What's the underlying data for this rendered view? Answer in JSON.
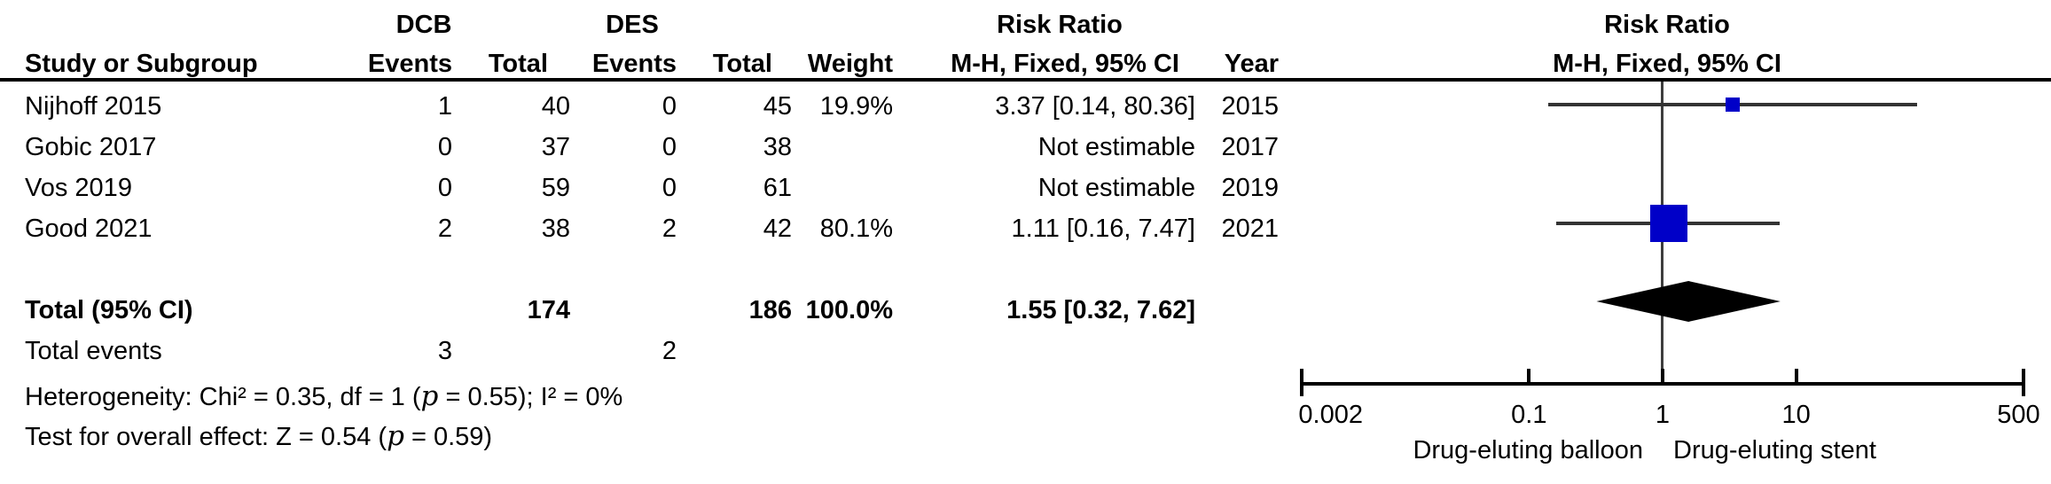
{
  "header": {
    "group_dcb": "DCB",
    "group_des": "DES",
    "risk_ratio_left_line1": "Risk Ratio",
    "risk_ratio_left_line2": "M-H, Fixed, 95% CI",
    "risk_ratio_right_line1": "Risk Ratio",
    "risk_ratio_right_line2": "M-H, Fixed, 95% CI",
    "col_study": "Study or Subgroup",
    "col_events1": "Events",
    "col_total1": "Total",
    "col_events2": "Events",
    "col_total2": "Total",
    "col_weight": "Weight",
    "col_year": "Year"
  },
  "rows": [
    {
      "study": "Nijhoff 2015",
      "dcb_events": "1",
      "dcb_total": "40",
      "des_events": "0",
      "des_total": "45",
      "weight": "19.9%",
      "rr_text": "3.37 [0.14, 80.36]",
      "year": "2015"
    },
    {
      "study": "Gobic 2017",
      "dcb_events": "0",
      "dcb_total": "37",
      "des_events": "0",
      "des_total": "38",
      "weight": "",
      "rr_text": "Not estimable",
      "year": "2017"
    },
    {
      "study": "Vos 2019",
      "dcb_events": "0",
      "dcb_total": "59",
      "des_events": "0",
      "des_total": "61",
      "weight": "",
      "rr_text": "Not estimable",
      "year": "2019"
    },
    {
      "study": "Good 2021",
      "dcb_events": "2",
      "dcb_total": "38",
      "des_events": "2",
      "des_total": "42",
      "weight": "80.1%",
      "rr_text": "1.11 [0.16, 7.47]",
      "year": "2021"
    }
  ],
  "total_row": {
    "label": "Total (95% CI)",
    "dcb_total": "174",
    "des_total": "186",
    "weight": "100.0%",
    "rr_text": "1.55 [0.32, 7.62]"
  },
  "total_events": {
    "label": "Total events",
    "dcb": "3",
    "des": "2"
  },
  "heterogeneity": {
    "pre": "Heterogeneity: Chi² = 0.35, df = 1 (",
    "p": "p",
    "post": " = 0.55); I² = 0%"
  },
  "overall_effect": {
    "pre": "Test for overall effect: Z = 0.54 (",
    "p": "p",
    "post": " = 0.59)"
  },
  "axis": {
    "left_label": "Drug-eluting balloon",
    "right_label": "Drug-eluting stent"
  },
  "colors": {
    "square_blue": "#0000C8",
    "diamond_black": "#000000",
    "ci_line": "#333333",
    "center_line": "#3d3d3d"
  },
  "chart_data": {
    "type": "forest",
    "effect_measure": "Risk Ratio",
    "method": "M-H, Fixed, 95% CI",
    "x_scale": "log",
    "x_ticks": [
      0.002,
      0.1,
      1,
      10,
      500
    ],
    "x_axis_left_label": "Drug-eluting balloon",
    "x_axis_right_label": "Drug-eluting stent",
    "studies": [
      {
        "name": "Nijhoff 2015",
        "rr": 3.37,
        "ci_low": 0.14,
        "ci_high": 80.36,
        "weight_pct": 19.9,
        "year": 2015
      },
      {
        "name": "Gobic 2017",
        "rr": null,
        "ci_low": null,
        "ci_high": null,
        "weight_pct": null,
        "year": 2017,
        "note": "Not estimable"
      },
      {
        "name": "Vos 2019",
        "rr": null,
        "ci_low": null,
        "ci_high": null,
        "weight_pct": null,
        "year": 2019,
        "note": "Not estimable"
      },
      {
        "name": "Good 2021",
        "rr": 1.11,
        "ci_low": 0.16,
        "ci_high": 7.47,
        "weight_pct": 80.1,
        "year": 2021
      }
    ],
    "total": {
      "rr": 1.55,
      "ci_low": 0.32,
      "ci_high": 7.62,
      "events_dcb": 3,
      "events_des": 2,
      "n_dcb": 174,
      "n_des": 186
    },
    "heterogeneity": {
      "chi2": 0.35,
      "df": 1,
      "p": 0.55,
      "i2_pct": 0
    },
    "overall_effect": {
      "z": 0.54,
      "p": 0.59
    }
  }
}
